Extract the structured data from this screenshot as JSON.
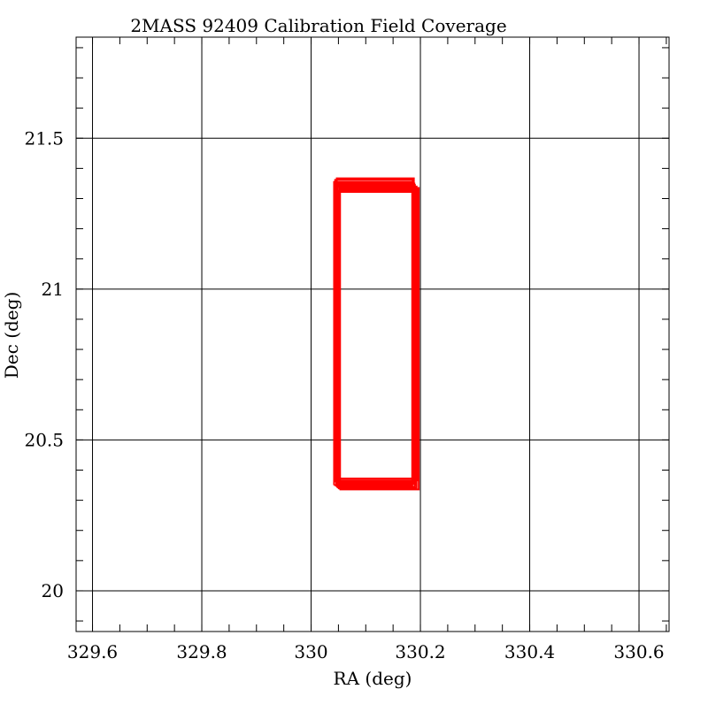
{
  "chart_data": {
    "type": "line",
    "title": "2MASS 92409 Calibration Field Coverage",
    "xlabel": "RA (deg)",
    "ylabel": "Dec (deg)",
    "xlim": [
      329.57,
      330.655
    ],
    "ylim": [
      19.865,
      21.835
    ],
    "xticks": [
      329.6,
      329.8,
      330,
      330.2,
      330.4,
      330.6
    ],
    "xtick_labels": [
      "329.6",
      "329.8",
      "330",
      "330.2",
      "330.4",
      "330.6"
    ],
    "yticks": [
      20,
      20.5,
      21,
      21.5
    ],
    "ytick_labels": [
      "20",
      "20.5",
      "21",
      "21.5"
    ],
    "x_minor_step": 0.05,
    "y_minor_step": 0.1,
    "grid": true,
    "legend": "none",
    "series_color": "#ff0000",
    "series": [
      {
        "x": [
          330.042,
          330.185,
          330.185,
          330.042,
          330.042
        ],
        "y": [
          20.35,
          20.35,
          21.355,
          21.355,
          20.35
        ]
      },
      {
        "x": [
          330.046,
          330.19,
          330.19,
          330.046,
          330.046
        ],
        "y": [
          20.345,
          20.345,
          21.345,
          21.345,
          20.345
        ]
      },
      {
        "x": [
          330.049,
          330.193,
          330.193,
          330.049,
          330.049
        ],
        "y": [
          20.34,
          20.34,
          21.34,
          21.34,
          20.34
        ]
      },
      {
        "x": [
          330.052,
          330.197,
          330.197,
          330.052,
          330.052
        ],
        "y": [
          20.336,
          20.336,
          21.335,
          21.335,
          20.336
        ]
      },
      {
        "x": [
          330.044,
          330.186,
          330.186,
          330.044,
          330.044
        ],
        "y": [
          20.362,
          20.362,
          21.362,
          21.362,
          20.362
        ]
      },
      {
        "x": [
          330.047,
          330.188,
          330.188,
          330.047,
          330.047
        ],
        "y": [
          20.372,
          20.372,
          21.367,
          21.367,
          20.372
        ]
      },
      {
        "x": [
          330.051,
          330.191,
          330.191,
          330.051,
          330.051
        ],
        "y": [
          20.357,
          20.357,
          21.325,
          21.325,
          20.357
        ]
      },
      {
        "x": [
          330.053,
          330.195,
          330.195,
          330.053,
          330.053
        ],
        "y": [
          20.366,
          20.366,
          21.33,
          21.33,
          20.366
        ]
      },
      {
        "x": [
          330.048,
          330.192,
          330.192,
          330.048,
          330.048
        ],
        "y": [
          20.353,
          20.353,
          21.322,
          21.322,
          20.353
        ]
      },
      {
        "x": [
          330.045,
          330.189,
          330.189,
          330.045,
          330.045
        ],
        "y": [
          20.36,
          20.36,
          21.35,
          21.35,
          20.36
        ]
      }
    ]
  }
}
